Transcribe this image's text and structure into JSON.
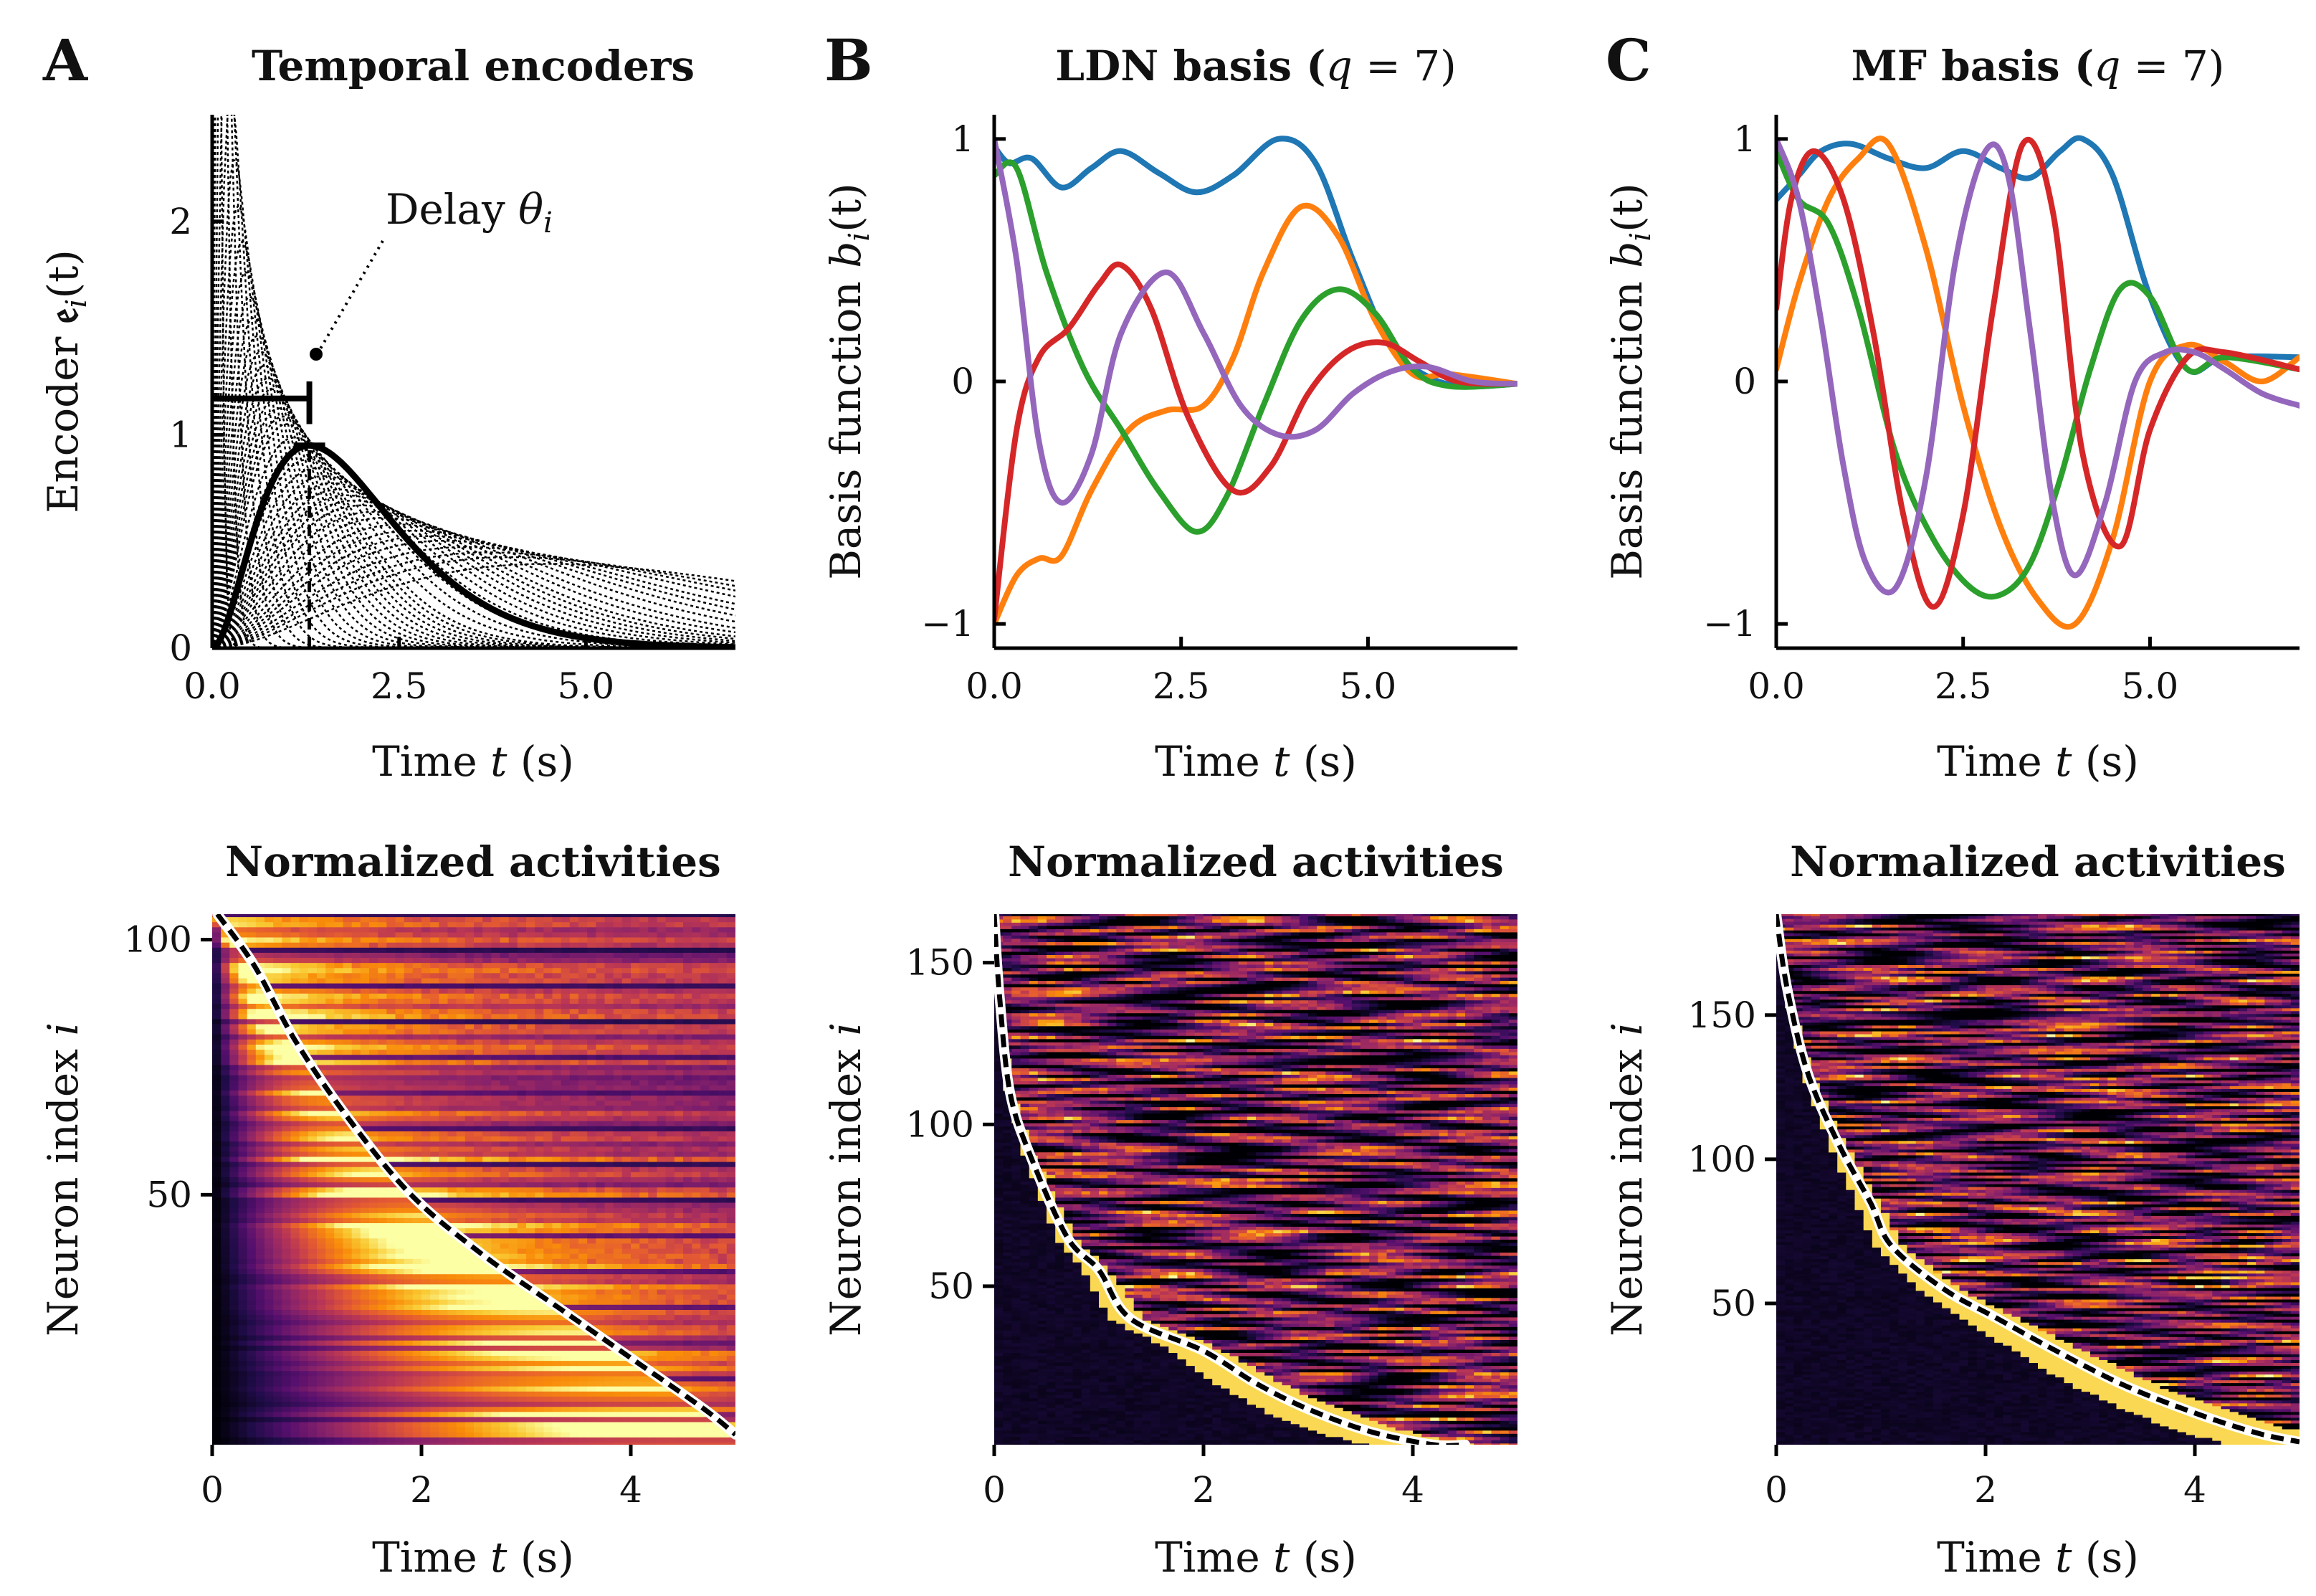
{
  "panels": [
    {
      "letter": "A",
      "title": "Temporal encoders"
    },
    {
      "letter": "B",
      "title_prefix": "LDN basis (",
      "title_var": "q",
      "title_suffix": " = 7)"
    },
    {
      "letter": "C",
      "title_prefix": "MF basis (",
      "title_var": "q",
      "title_suffix": " = 7)"
    }
  ],
  "labels": {
    "time_prefix": "Time ",
    "time_var": "t",
    "time_suffix": " (s)",
    "encoder_prefix": "Encoder ",
    "encoder_var": "𝔢",
    "encoder_sub": "i",
    "encoder_suffix": "(t)",
    "basis_prefix": "Basis function ",
    "basis_var": "b",
    "basis_sub": "i",
    "basis_suffix": "(t)",
    "neuron_prefix": "Neuron index ",
    "neuron_var": "i",
    "delay_prefix": "Delay ",
    "delay_var": "θ",
    "delay_sub": "i",
    "activities_title": "Normalized activities"
  },
  "colors": {
    "blue": "#1f77b4",
    "orange": "#ff7f0e",
    "green": "#2ca02c",
    "red": "#d62728",
    "purple": "#9467bd"
  },
  "chart_data": [
    {
      "type": "line",
      "panel": "A-top",
      "title": "Temporal encoders",
      "xlabel": "Time t (s)",
      "ylabel": "Encoder e_i(t)",
      "xlim": [
        0,
        7
      ],
      "ylim": [
        0,
        2.5
      ],
      "xticks": [
        "0.0",
        "2.5",
        "5.0"
      ],
      "xtick_values": [
        0,
        2.5,
        5
      ],
      "yticks": [
        "0",
        "1",
        "2"
      ],
      "ytick_values": [
        0,
        1,
        2
      ],
      "annotation": "Delay θ_i",
      "highlight_delay": 1.3,
      "highlight_peak": 0.95,
      "family_delays": [
        0.05,
        0.1,
        0.15,
        0.2,
        0.25,
        0.3,
        0.35,
        0.4,
        0.45,
        0.5,
        0.55,
        0.6,
        0.65,
        0.7,
        0.75,
        0.8,
        0.85,
        0.9,
        0.95,
        1.0,
        1.1,
        1.2,
        1.3,
        1.4,
        1.5,
        1.6,
        1.7,
        1.8,
        1.9,
        2.0,
        2.15,
        2.3,
        2.5,
        2.7,
        2.9,
        3.1,
        3.4,
        3.7,
        4.0,
        4.5
      ]
    },
    {
      "type": "line",
      "panel": "B-top",
      "title": "LDN basis (q = 7)",
      "xlabel": "Time t (s)",
      "ylabel": "Basis function b_i(t)",
      "xlim": [
        0,
        7
      ],
      "ylim": [
        -1.1,
        1.1
      ],
      "xticks": [
        "0.0",
        "2.5",
        "5.0"
      ],
      "xtick_values": [
        0,
        2.5,
        5
      ],
      "yticks": [
        "−1",
        "0",
        "1"
      ],
      "ytick_values": [
        -1,
        0,
        1
      ],
      "series": [
        {
          "name": "blue",
          "x": [
            0,
            0.2,
            0.5,
            0.9,
            1.3,
            1.7,
            2.2,
            2.7,
            3.2,
            3.8,
            4.3,
            4.8,
            5.3,
            5.8,
            6.3,
            7
          ],
          "y": [
            0.97,
            0.9,
            0.92,
            0.8,
            0.88,
            0.95,
            0.86,
            0.78,
            0.85,
            1.0,
            0.9,
            0.5,
            0.15,
            0.02,
            -0.02,
            -0.01
          ]
        },
        {
          "name": "orange",
          "x": [
            0,
            0.3,
            0.6,
            0.9,
            1.3,
            1.8,
            2.3,
            2.8,
            3.2,
            3.6,
            4.1,
            4.6,
            5.1,
            5.6,
            6.1,
            7
          ],
          "y": [
            -1.0,
            -0.8,
            -0.73,
            -0.72,
            -0.45,
            -0.2,
            -0.12,
            -0.1,
            0.1,
            0.45,
            0.72,
            0.6,
            0.25,
            0.03,
            0.03,
            -0.01
          ]
        },
        {
          "name": "green",
          "x": [
            0,
            0.3,
            0.7,
            1.2,
            1.7,
            2.2,
            2.7,
            3.1,
            3.6,
            4.1,
            4.6,
            5.1,
            5.6,
            6.1,
            7
          ],
          "y": [
            0.85,
            0.88,
            0.45,
            0.05,
            -0.2,
            -0.45,
            -0.62,
            -0.48,
            -0.1,
            0.25,
            0.38,
            0.28,
            0.05,
            -0.02,
            -0.01
          ]
        },
        {
          "name": "red",
          "x": [
            0,
            0.3,
            0.6,
            1.0,
            1.4,
            1.7,
            2.1,
            2.6,
            3.2,
            3.7,
            4.2,
            4.7,
            5.2,
            5.7,
            6.2,
            7
          ],
          "y": [
            -0.98,
            -0.2,
            0.1,
            0.22,
            0.4,
            0.48,
            0.3,
            -0.15,
            -0.45,
            -0.35,
            -0.05,
            0.12,
            0.16,
            0.08,
            0.0,
            -0.01
          ]
        },
        {
          "name": "purple",
          "x": [
            0,
            0.3,
            0.6,
            0.9,
            1.3,
            1.7,
            2.3,
            2.8,
            3.3,
            3.8,
            4.3,
            4.8,
            5.3,
            5.8,
            6.4,
            7
          ],
          "y": [
            1.0,
            0.5,
            -0.25,
            -0.5,
            -0.3,
            0.2,
            0.45,
            0.2,
            -0.1,
            -0.22,
            -0.2,
            -0.05,
            0.04,
            0.06,
            0.0,
            -0.01
          ]
        }
      ]
    },
    {
      "type": "line",
      "panel": "C-top",
      "title": "MF basis (q = 7)",
      "xlabel": "Time t (s)",
      "ylabel": "Basis function b_i(t)",
      "xlim": [
        0,
        7
      ],
      "ylim": [
        -1.1,
        1.1
      ],
      "xticks": [
        "0.0",
        "2.5",
        "5.0"
      ],
      "xtick_values": [
        0,
        2.5,
        5
      ],
      "yticks": [
        "−1",
        "0",
        "1"
      ],
      "ytick_values": [
        -1,
        0,
        1
      ],
      "series": [
        {
          "name": "blue",
          "x": [
            0,
            0.3,
            0.6,
            1.0,
            1.5,
            2.0,
            2.5,
            3.0,
            3.4,
            3.8,
            4.1,
            4.5,
            5.0,
            5.5,
            6.0,
            7
          ],
          "y": [
            0.75,
            0.85,
            0.95,
            0.98,
            0.92,
            0.88,
            0.95,
            0.88,
            0.84,
            0.95,
            1.0,
            0.85,
            0.35,
            0.05,
            0.1,
            0.1
          ]
        },
        {
          "name": "orange",
          "x": [
            0,
            0.3,
            0.7,
            1.1,
            1.5,
            2.0,
            2.5,
            3.0,
            3.5,
            4.0,
            4.5,
            5.0,
            5.5,
            6.0,
            6.5,
            7
          ],
          "y": [
            0.05,
            0.4,
            0.75,
            0.92,
            0.98,
            0.55,
            -0.1,
            -0.6,
            -0.9,
            -1.0,
            -0.65,
            0.0,
            0.15,
            0.08,
            0.0,
            0.1
          ]
        },
        {
          "name": "green",
          "x": [
            0,
            0.3,
            0.7,
            1.1,
            1.6,
            2.1,
            2.6,
            3.0,
            3.4,
            3.8,
            4.2,
            4.6,
            5.0,
            5.5,
            6.0,
            7
          ],
          "y": [
            0.95,
            0.75,
            0.65,
            0.3,
            -0.3,
            -0.65,
            -0.85,
            -0.88,
            -0.75,
            -0.4,
            0.05,
            0.38,
            0.35,
            0.05,
            0.1,
            0.05
          ]
        },
        {
          "name": "red",
          "x": [
            0,
            0.2,
            0.5,
            0.9,
            1.3,
            1.7,
            2.1,
            2.5,
            2.9,
            3.3,
            3.7,
            4.1,
            4.6,
            5.0,
            5.5,
            6.0,
            7
          ],
          "y": [
            0.3,
            0.75,
            0.95,
            0.75,
            0.2,
            -0.55,
            -0.93,
            -0.55,
            0.3,
            0.98,
            0.7,
            -0.3,
            -0.68,
            -0.2,
            0.1,
            0.12,
            0.05
          ]
        },
        {
          "name": "purple",
          "x": [
            0,
            0.3,
            0.6,
            0.9,
            1.2,
            1.6,
            2.0,
            2.4,
            2.8,
            3.1,
            3.4,
            3.7,
            4.0,
            4.4,
            4.8,
            5.2,
            5.6,
            6.0,
            6.5,
            7
          ],
          "y": [
            1.0,
            0.75,
            0.25,
            -0.35,
            -0.75,
            -0.85,
            -0.4,
            0.5,
            0.95,
            0.85,
            0.2,
            -0.5,
            -0.8,
            -0.5,
            0.0,
            0.12,
            0.12,
            0.05,
            -0.05,
            -0.1
          ]
        }
      ]
    },
    {
      "type": "heatmap",
      "panel": "A-bottom",
      "title": "Normalized activities",
      "xlabel": "Time t (s)",
      "ylabel": "Neuron index i",
      "xlim": [
        0,
        5
      ],
      "ylim": [
        1,
        105
      ],
      "xticks": [
        "0",
        "2",
        "4"
      ],
      "xtick_values": [
        0,
        2,
        4
      ],
      "yticks": [
        "50",
        "100"
      ],
      "ytick_values": [
        50,
        100
      ],
      "rows": 105,
      "frontier": {
        "x": [
          0.05,
          0.4,
          0.8,
          1.3,
          1.9,
          2.6,
          3.3,
          4.0,
          4.7,
          5.0
        ],
        "y": [
          105,
          95,
          80,
          65,
          50,
          38,
          28,
          18,
          8,
          3
        ]
      }
    },
    {
      "type": "heatmap",
      "panel": "B-bottom",
      "title": "Normalized activities",
      "xlabel": "Time t (s)",
      "ylabel": "Neuron index i",
      "xlim": [
        0,
        5
      ],
      "ylim": [
        1,
        165
      ],
      "xticks": [
        "0",
        "2",
        "4"
      ],
      "xtick_values": [
        0,
        2,
        4
      ],
      "yticks": [
        "50",
        "100",
        "150"
      ],
      "ytick_values": [
        50,
        100,
        150
      ],
      "rows": 165,
      "frontier": {
        "x": [
          0.0,
          0.05,
          0.15,
          0.35,
          0.7,
          1.0,
          1.3,
          2.0,
          2.5,
          3.0,
          3.6,
          4.2,
          4.5
        ],
        "y": [
          165,
          140,
          110,
          90,
          65,
          55,
          40,
          30,
          20,
          12,
          5,
          1,
          1
        ]
      }
    },
    {
      "type": "heatmap",
      "panel": "C-bottom",
      "title": "Normalized activities",
      "xlabel": "Time t (s)",
      "ylabel": "Neuron index i",
      "xlim": [
        0,
        5
      ],
      "ylim": [
        1,
        185
      ],
      "xticks": [
        "0",
        "2",
        "4"
      ],
      "xtick_values": [
        0,
        2,
        4
      ],
      "yticks": [
        "50",
        "100",
        "150"
      ],
      "ytick_values": [
        50,
        100,
        150
      ],
      "rows": 185,
      "frontier": {
        "x": [
          0.0,
          0.1,
          0.3,
          0.6,
          0.9,
          1.1,
          1.6,
          2.1,
          2.6,
          3.3,
          4.0,
          4.6,
          5.0
        ],
        "y": [
          185,
          160,
          130,
          105,
          85,
          70,
          55,
          45,
          35,
          22,
          12,
          5,
          2
        ]
      }
    }
  ]
}
